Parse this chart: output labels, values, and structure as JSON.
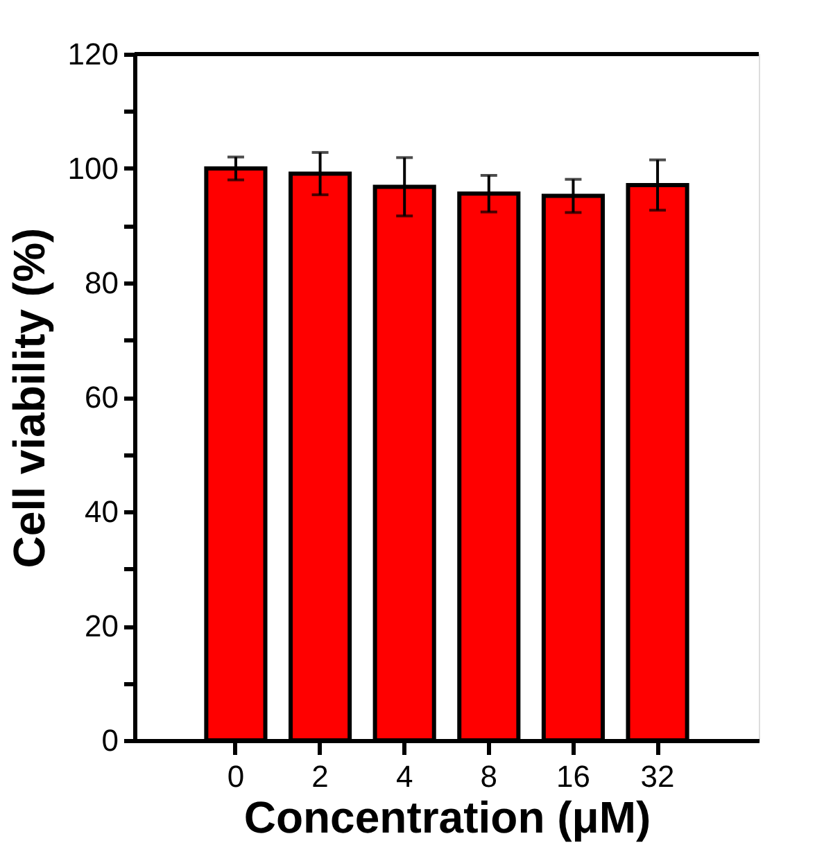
{
  "chart_data": {
    "type": "bar",
    "xlabel": "Concentration (μM)",
    "ylabel": "Cell viability (%)",
    "categories": [
      "0",
      "2",
      "4",
      "8",
      "16",
      "32"
    ],
    "series": [
      {
        "color": "#ff0000",
        "values": [
          100,
          99.1,
          96.8,
          95.6,
          95.2,
          97.1
        ],
        "errors": [
          2.0,
          3.7,
          5.1,
          3.2,
          2.9,
          4.4
        ]
      }
    ],
    "ylim": [
      0,
      120
    ],
    "yticks": [
      0,
      {
        "value": 10,
        "label": null
      },
      20,
      {
        "value": 30,
        "label": null
      },
      40,
      {
        "value": 50,
        "label": null
      },
      60,
      {
        "value": 70,
        "label": null
      },
      80,
      {
        "value": 90,
        "label": null
      },
      100,
      {
        "value": 110,
        "label": null
      },
      120
    ],
    "grid": false,
    "legend": false
  }
}
